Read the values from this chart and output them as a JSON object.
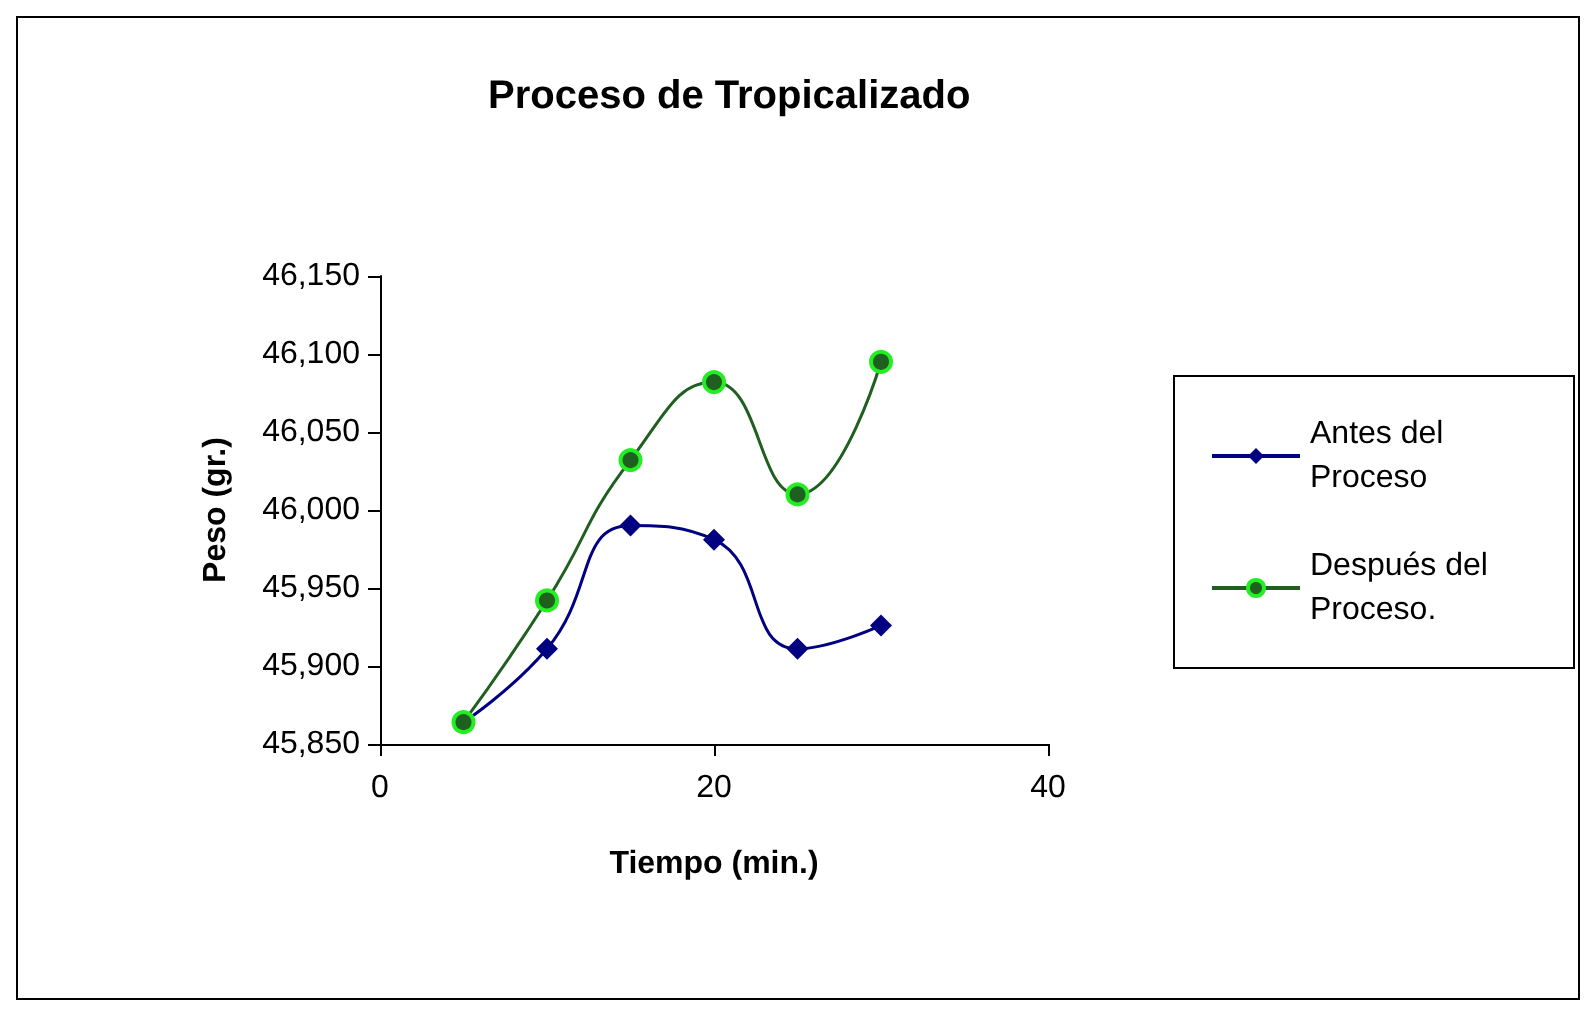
{
  "chart_data": {
    "type": "line",
    "title": "Proceso de Tropicalizado",
    "xlabel": "Tiempo (min.)",
    "ylabel": "Peso (gr.)",
    "x": [
      5,
      10,
      15,
      20,
      25,
      30
    ],
    "series": [
      {
        "name": "Antes del Proceso",
        "color": "#000080",
        "marker": "diamond",
        "values": [
          45864,
          45911,
          45990,
          45981,
          45911,
          45926
        ]
      },
      {
        "name": "Después del Proceso.",
        "color": "#1f5f1f",
        "marker": "circle",
        "values": [
          45864,
          45942,
          46032,
          46082,
          46010,
          46095
        ]
      }
    ],
    "xlim": [
      0,
      40
    ],
    "xticks": [
      0,
      20,
      40
    ],
    "ylim": [
      45850,
      46150
    ],
    "yticks": [
      {
        "value": 45850,
        "label": "45,850"
      },
      {
        "value": 45900,
        "label": "45,900"
      },
      {
        "value": 45950,
        "label": "45,950"
      },
      {
        "value": 46000,
        "label": "46,000"
      },
      {
        "value": 46050,
        "label": "46,050"
      },
      {
        "value": 46100,
        "label": "46,100"
      },
      {
        "value": 46150,
        "label": "46,150"
      }
    ],
    "grid": false,
    "legend": "right",
    "line_style": "solid"
  }
}
